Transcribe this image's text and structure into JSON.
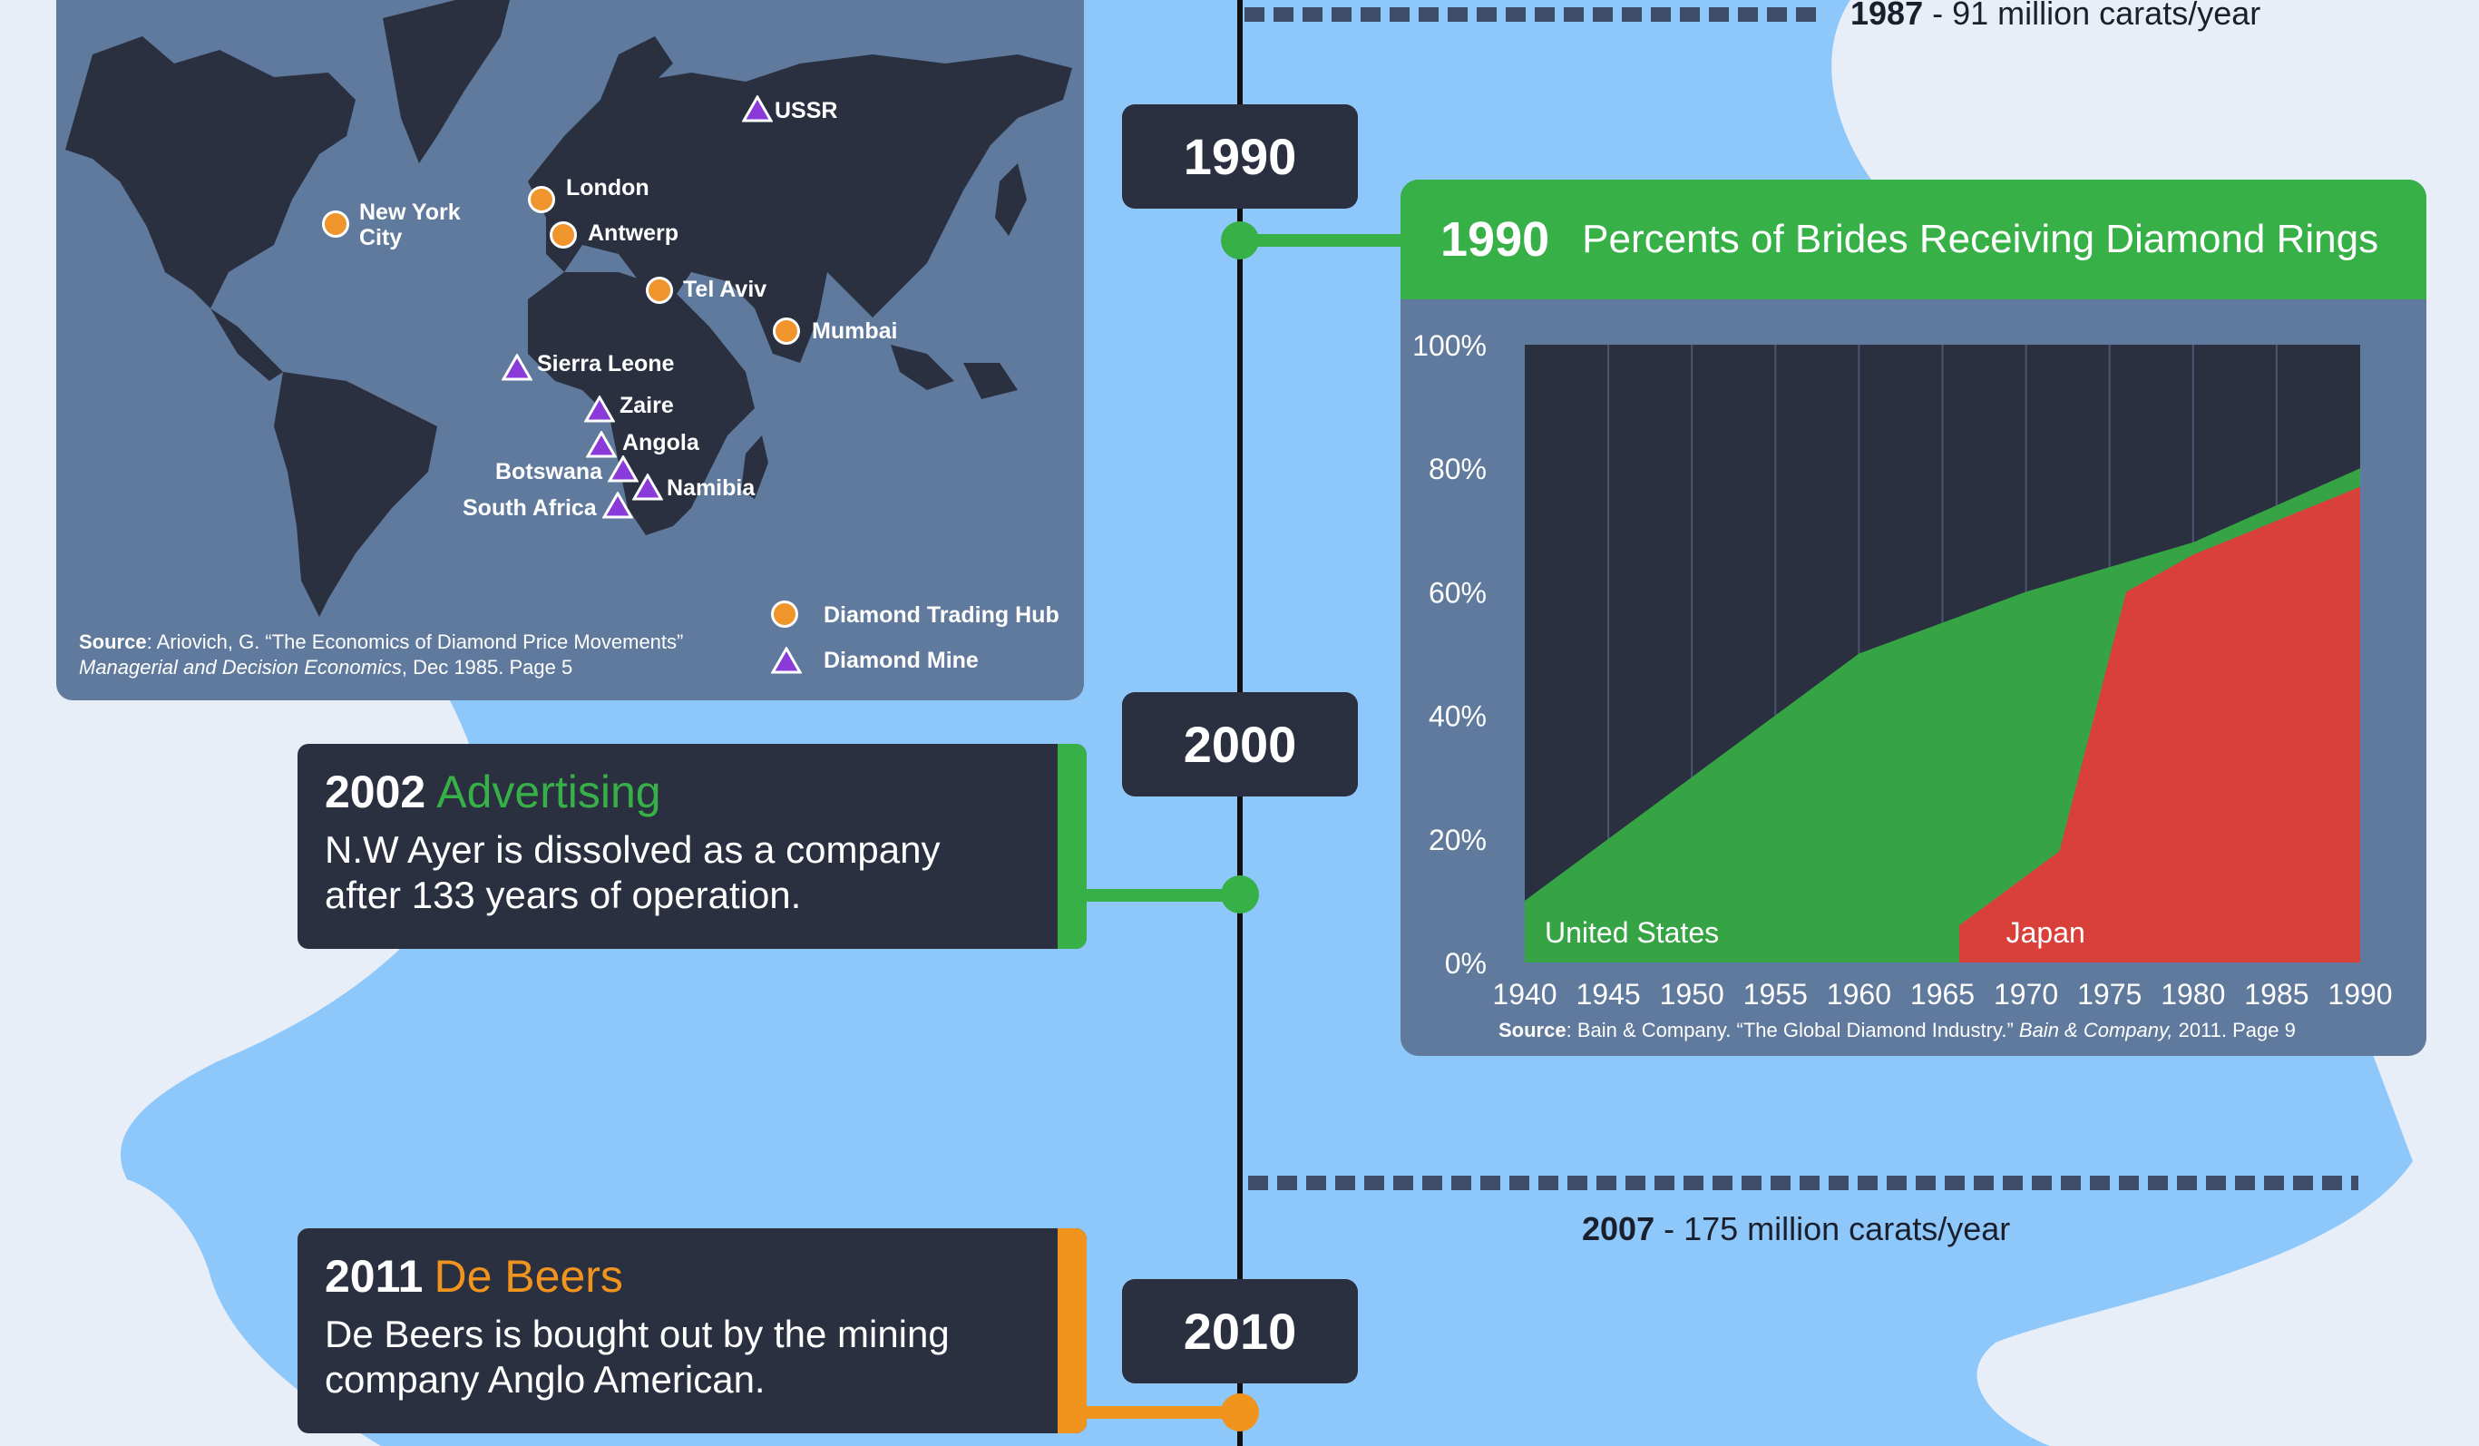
{
  "timeline": {
    "years": [
      "1990",
      "2000",
      "2010"
    ],
    "production": [
      {
        "year": "1987",
        "text": " - 91 million carats/year"
      },
      {
        "year": "2007",
        "text": " - 175 million carats/year"
      }
    ]
  },
  "map": {
    "hubs": [
      "New York City",
      "London",
      "Antwerp",
      "Tel Aviv",
      "Mumbai"
    ],
    "mines": [
      "USSR",
      "Sierra Leone",
      "Zaire",
      "Angola",
      "Botswana",
      "Namibia",
      "South Africa"
    ],
    "legend": {
      "hub": "Diamond Trading Hub",
      "mine": "Diamond Mine"
    },
    "source": {
      "label": "Source",
      "text": ": Ariovich, G. “The Economics of Diamond Price Movements”",
      "journal": "Managerial and Decision Economics",
      "detail": ", Dec 1985. Page 5"
    }
  },
  "events": [
    {
      "year": "2002",
      "topic": "Advertising",
      "text": "N.W Ayer is dissolved as a company after 133 years of operation.",
      "color": "#38b048"
    },
    {
      "year": "2011",
      "topic": "De Beers",
      "text": "De Beers is bought out by the mining company Anglo American.",
      "color": "#f0941e"
    }
  ],
  "chart_header": {
    "year": "1990",
    "title": "Percents of Brides Receiving Diamond Rings"
  },
  "chart_source": {
    "label": "Source",
    "text": ": Bain & Company. “The Global Diamond Industry.” ",
    "journal": "Bain & Company,",
    "detail": " 2011. Page 9"
  },
  "colors": {
    "us": "#36a444",
    "japan": "#d9403a",
    "plot_bg": "#2a3040",
    "accent_green": "#38b048",
    "accent_orange": "#f0941e"
  },
  "chart_data": {
    "type": "area",
    "title": "Percents of Brides Receiving Diamond Rings",
    "x": [
      1940,
      1945,
      1950,
      1955,
      1960,
      1965,
      1970,
      1975,
      1980,
      1985,
      1990
    ],
    "x_ticks": [
      "1940",
      "1945",
      "1950",
      "1955",
      "1960",
      "1965",
      "1970",
      "1975",
      "1980",
      "1985",
      "1990"
    ],
    "y_ticks": [
      "0%",
      "20%",
      "40%",
      "60%",
      "80%",
      "100%"
    ],
    "ylim": [
      0,
      100
    ],
    "xlim": [
      1940,
      1990
    ],
    "grid": true,
    "series": [
      {
        "name": "United States",
        "x": [
          1940,
          1960,
          1970,
          1980,
          1990
        ],
        "values": [
          10,
          50,
          60,
          68,
          80
        ]
      },
      {
        "name": "Japan",
        "x": [
          1966,
          1972,
          1976,
          1980,
          1990
        ],
        "values": [
          6,
          18,
          60,
          66,
          77
        ]
      }
    ]
  }
}
